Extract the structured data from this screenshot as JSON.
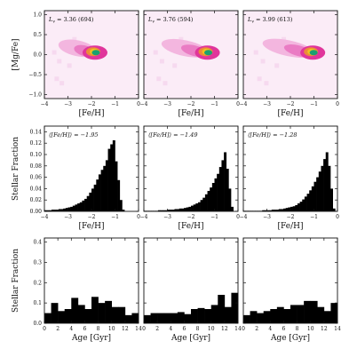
{
  "colors": {
    "background": "#ffffff",
    "axes": "#111111",
    "bars": "#000000",
    "heat_low": "#f6d9ef",
    "heat_mid": "#e0359b",
    "heat_high": "#f0c020",
    "heat_peak": "#1aa070"
  },
  "chart_data": [
    {
      "type": "heatmap",
      "row": 0,
      "col": 0,
      "annotation": "L_v = 3.36 (694)",
      "xlabel": "[Fe/H]",
      "ylabel": "[Mg/Fe]",
      "xlim": [
        -4,
        0
      ],
      "ylim": [
        -1.1,
        1.1
      ],
      "xticks": [
        -4,
        -3,
        -2,
        -1,
        0
      ],
      "yticks": [
        1.0,
        0.5,
        0.0,
        -0.5,
        -1.0
      ],
      "ytick_labels": [
        "1.0",
        "0.5",
        "0.0",
        "-0.5",
        "-1.0"
      ],
      "density_peak": {
        "x": -1.85,
        "y": 0.05
      }
    },
    {
      "type": "heatmap",
      "row": 0,
      "col": 1,
      "annotation": "L_v = 3.76 (594)",
      "xlabel": "[Fe/H]",
      "xlim": [
        -4,
        0
      ],
      "ylim": [
        -1.1,
        1.1
      ],
      "xticks": [
        -4,
        -3,
        -2,
        -1,
        0
      ],
      "density_peak": {
        "x": -1.3,
        "y": 0.05
      }
    },
    {
      "type": "heatmap",
      "row": 0,
      "col": 2,
      "annotation": "L_v = 3.99 (613)",
      "xlabel": "[Fe/H]",
      "xlim": [
        -4,
        0
      ],
      "ylim": [
        -1.1,
        1.1
      ],
      "xticks": [
        -4,
        -3,
        -2,
        -1,
        0
      ],
      "density_peak": {
        "x": -1.05,
        "y": 0.05
      }
    },
    {
      "type": "bar",
      "row": 1,
      "col": 0,
      "annotation": "⟨[Fe/H]⟩ = −1.95",
      "xlabel": "[Fe/H]",
      "ylabel": "Stellar Fraction",
      "xlim": [
        -4,
        0
      ],
      "ylim": [
        0,
        0.15
      ],
      "xticks": [
        -4,
        -3,
        -2,
        -1,
        0
      ],
      "yticks": [
        0.0,
        0.02,
        0.04,
        0.06,
        0.08,
        0.1,
        0.12,
        0.14
      ],
      "ytick_labels": [
        "0.00",
        "0.02",
        "0.04",
        "0.06",
        "0.08",
        "0.10",
        "0.12",
        "0.14"
      ],
      "bin_start": -4.0,
      "bin_width": 0.1,
      "values": [
        0.002,
        0.002,
        0.002,
        0.003,
        0.003,
        0.003,
        0.004,
        0.004,
        0.005,
        0.006,
        0.007,
        0.008,
        0.01,
        0.012,
        0.014,
        0.016,
        0.019,
        0.022,
        0.027,
        0.033,
        0.04,
        0.047,
        0.056,
        0.065,
        0.073,
        0.08,
        0.09,
        0.11,
        0.118,
        0.125,
        0.088,
        0.055,
        0.02,
        0.003,
        0.0,
        0.0,
        0.0,
        0.0,
        0.0,
        0.0
      ]
    },
    {
      "type": "bar",
      "row": 1,
      "col": 1,
      "annotation": "⟨[Fe/H]⟩ = −1.49",
      "xlabel": "[Fe/H]",
      "xlim": [
        -4,
        0
      ],
      "ylim": [
        0,
        0.15
      ],
      "xticks": [
        -4,
        -3,
        -2,
        -1,
        0
      ],
      "bin_start": -4.0,
      "bin_width": 0.1,
      "values": [
        0.001,
        0.001,
        0.001,
        0.001,
        0.001,
        0.001,
        0.002,
        0.002,
        0.002,
        0.002,
        0.003,
        0.003,
        0.003,
        0.004,
        0.004,
        0.005,
        0.005,
        0.006,
        0.007,
        0.008,
        0.01,
        0.012,
        0.014,
        0.016,
        0.02,
        0.024,
        0.03,
        0.036,
        0.042,
        0.05,
        0.058,
        0.066,
        0.078,
        0.09,
        0.104,
        0.075,
        0.04,
        0.008,
        0.0,
        0.0
      ]
    },
    {
      "type": "bar",
      "row": 1,
      "col": 2,
      "annotation": "⟨[Fe/H]⟩ = −1.28",
      "xlabel": "[Fe/H]",
      "xlim": [
        -4,
        0
      ],
      "ylim": [
        0,
        0.15
      ],
      "xticks": [
        -4,
        -3,
        -2,
        -1,
        0
      ],
      "bin_start": -4.0,
      "bin_width": 0.1,
      "values": [
        0.001,
        0.001,
        0.001,
        0.001,
        0.001,
        0.001,
        0.001,
        0.001,
        0.002,
        0.002,
        0.002,
        0.002,
        0.003,
        0.003,
        0.003,
        0.004,
        0.004,
        0.005,
        0.006,
        0.007,
        0.008,
        0.009,
        0.011,
        0.014,
        0.017,
        0.021,
        0.026,
        0.031,
        0.037,
        0.044,
        0.052,
        0.06,
        0.07,
        0.08,
        0.092,
        0.104,
        0.08,
        0.04,
        0.005,
        0.0
      ]
    },
    {
      "type": "bar",
      "row": 2,
      "col": 0,
      "xlabel": "Age [Gyr]",
      "ylabel": "Stellar Fraction",
      "xlim": [
        0,
        14
      ],
      "ylim": [
        0,
        0.42
      ],
      "xticks": [
        0,
        2,
        4,
        6,
        8,
        10,
        12,
        14
      ],
      "yticks": [
        0.0,
        0.1,
        0.2,
        0.3,
        0.4
      ],
      "ytick_labels": [
        "0.0",
        "0.1",
        "0.2",
        "0.3",
        "0.4"
      ],
      "bin_start": 0,
      "bin_width": 1,
      "values": [
        0.05,
        0.1,
        0.06,
        0.07,
        0.125,
        0.09,
        0.07,
        0.13,
        0.1,
        0.11,
        0.08,
        0.08,
        0.04,
        0.05
      ]
    },
    {
      "type": "bar",
      "row": 2,
      "col": 1,
      "xlabel": "Age [Gyr]",
      "xlim": [
        0,
        14
      ],
      "ylim": [
        0,
        0.42
      ],
      "xticks": [
        0,
        2,
        4,
        6,
        8,
        10,
        12,
        14
      ],
      "bin_start": 0,
      "bin_width": 1,
      "values": [
        0.04,
        0.05,
        0.05,
        0.05,
        0.05,
        0.055,
        0.045,
        0.07,
        0.075,
        0.07,
        0.09,
        0.14,
        0.08,
        0.15
      ]
    },
    {
      "type": "bar",
      "row": 2,
      "col": 2,
      "xlabel": "Age [Gyr]",
      "xlim": [
        0,
        14
      ],
      "ylim": [
        0,
        0.42
      ],
      "xticks": [
        0,
        2,
        4,
        6,
        8,
        10,
        12,
        14
      ],
      "bin_start": 0,
      "bin_width": 1,
      "values": [
        0.04,
        0.06,
        0.05,
        0.06,
        0.07,
        0.08,
        0.07,
        0.09,
        0.09,
        0.11,
        0.11,
        0.08,
        0.06,
        0.1
      ]
    }
  ]
}
